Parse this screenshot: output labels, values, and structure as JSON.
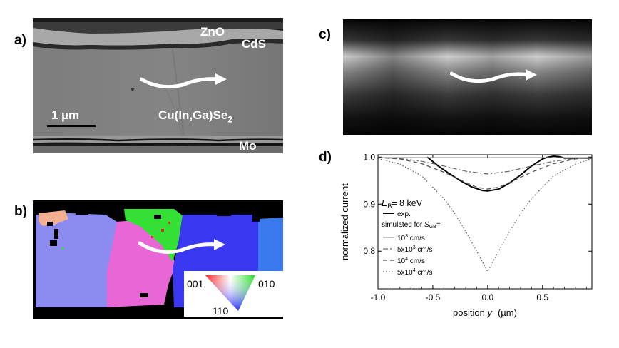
{
  "panel_labels": {
    "a": "a)",
    "b": "b)",
    "c": "c)",
    "d": "d)"
  },
  "sem": {
    "zno": "ZnO",
    "cds": "CdS",
    "cigs_main": "Cu(In,Ga)Se",
    "cigs_sub": "2",
    "mo": "Mo",
    "scale_bar": "1 µm"
  },
  "ebsd_legend": {
    "corner_left": "001",
    "corner_right": "010",
    "corner_bottom": "110"
  },
  "colors": {
    "ebsd_lavender": "#8c8cf0",
    "ebsd_magenta": "#e866d6",
    "ebsd_green": "#33e033",
    "ebsd_blue": "#3a38f0",
    "ebsd_skyblue": "#3a78ee",
    "ebsd_salmon": "#f2b090",
    "arrow": "#ffffff"
  },
  "chart_data": {
    "type": "line",
    "xlabel_prefix": "position ",
    "xlabel_var": "y",
    "xlabel_unit": "(µm)",
    "ylabel": "normalized current",
    "xlim": [
      -1.0,
      0.95
    ],
    "ylim": [
      0.72,
      1.005
    ],
    "xticks": [
      -1.0,
      -0.5,
      0.0,
      0.5
    ],
    "xtick_labels": [
      "-1.0",
      "-0.5",
      "0.0",
      "0.5"
    ],
    "yticks": [
      0.8,
      0.9,
      1.0
    ],
    "ytick_labels": [
      "0.8",
      "0.9",
      "1.0"
    ],
    "legend": {
      "eb_symbol": "E",
      "eb_sub": "B",
      "eb_value": "= 8 keV",
      "exp": "exp.",
      "sim_prefix": "simulated for ",
      "sim_symbol": "S",
      "sim_sub": "GB",
      "sim_suffix": "=",
      "entries": [
        {
          "base": "10",
          "exp": "3",
          "unit": " cm/s"
        },
        {
          "base": "5x10",
          "exp": "3",
          "unit": " cm/s"
        },
        {
          "base": "10",
          "exp": "4",
          "unit": " cm/s"
        },
        {
          "base": "5x10",
          "exp": "4",
          "unit": " cm/s"
        }
      ]
    },
    "series": [
      {
        "style": "solid-thick",
        "x": [
          -0.55,
          -0.45,
          -0.35,
          -0.25,
          -0.15,
          -0.05,
          0.0,
          0.1,
          0.2,
          0.3,
          0.4,
          0.5,
          0.55,
          0.6,
          0.65,
          0.7,
          0.8,
          0.9,
          0.95
        ],
        "y": [
          1.0,
          0.981,
          0.965,
          0.95,
          0.937,
          0.929,
          0.928,
          0.932,
          0.945,
          0.962,
          0.981,
          0.996,
          1.0,
          1.002,
          1.001,
          0.998,
          0.998,
          0.998,
          0.998
        ]
      },
      {
        "style": "solid-thin",
        "x": [
          -1.0,
          -0.8,
          -0.6,
          -0.4,
          -0.2,
          0.0,
          0.2,
          0.4,
          0.6,
          0.8,
          0.95
        ],
        "y": [
          0.999,
          0.999,
          0.999,
          0.999,
          0.999,
          0.999,
          0.999,
          0.999,
          0.999,
          0.999,
          0.999
        ]
      },
      {
        "style": "dashdot",
        "x": [
          -1.0,
          -0.8,
          -0.6,
          -0.4,
          -0.2,
          0.0,
          0.2,
          0.4,
          0.6,
          0.8,
          0.95
        ],
        "y": [
          0.999,
          0.997,
          0.991,
          0.981,
          0.97,
          0.964,
          0.97,
          0.981,
          0.991,
          0.997,
          0.999
        ]
      },
      {
        "style": "dashed",
        "x": [
          -1.0,
          -0.8,
          -0.6,
          -0.4,
          -0.2,
          -0.1,
          0.0,
          0.1,
          0.2,
          0.4,
          0.6,
          0.8,
          0.95
        ],
        "y": [
          0.999,
          0.996,
          0.986,
          0.968,
          0.946,
          0.936,
          0.932,
          0.936,
          0.946,
          0.968,
          0.986,
          0.996,
          0.999
        ]
      },
      {
        "style": "dotted",
        "x": [
          -1.0,
          -0.8,
          -0.6,
          -0.4,
          -0.3,
          -0.2,
          -0.1,
          -0.05,
          0.0,
          0.05,
          0.1,
          0.2,
          0.3,
          0.4,
          0.6,
          0.8,
          0.95
        ],
        "y": [
          0.997,
          0.985,
          0.96,
          0.912,
          0.88,
          0.842,
          0.8,
          0.778,
          0.757,
          0.778,
          0.8,
          0.842,
          0.88,
          0.912,
          0.96,
          0.985,
          0.997
        ]
      }
    ]
  }
}
